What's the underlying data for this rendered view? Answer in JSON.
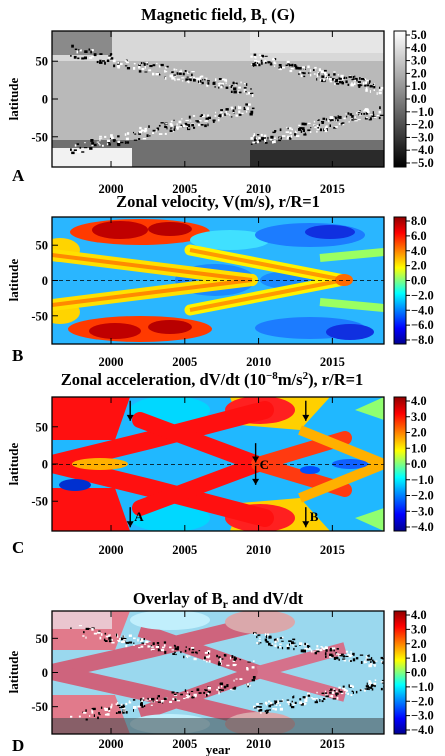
{
  "chart_data": [
    {
      "type": "heatmap",
      "panel_label": "A",
      "title": "Magnetic field, B_r (G)",
      "ylabel": "latitude",
      "xlabel": "",
      "xlim": [
        1996,
        2018.5
      ],
      "ylim": [
        -90,
        90
      ],
      "x_ticks": [
        2000,
        2005,
        2010,
        2015
      ],
      "y_ticks": [
        50,
        0,
        -50
      ],
      "colorbar": {
        "colormap": "grayscale",
        "range": [
          -5.0,
          5.0
        ],
        "ticks": [
          "5.0",
          "4.0",
          "3.0",
          "2.0",
          "1.0",
          "0.0",
          "−1.0",
          "−2.0",
          "−3.0",
          "−4.0",
          "−5.0"
        ]
      },
      "features": "butterfly diagram: low-latitude mixed-polarity sunspot bands migrating equatorward in cycles 23 and 24; polar fields reversing around 2000-2001 and 2013-2015"
    },
    {
      "type": "heatmap",
      "panel_label": "B",
      "title": "Zonal velocity, V(m/s), r/R=1",
      "ylabel": "latitude",
      "xlabel": "",
      "xlim": [
        1996,
        2018.5
      ],
      "ylim": [
        -90,
        90
      ],
      "x_ticks": [
        2000,
        2005,
        2010,
        2015
      ],
      "y_ticks": [
        50,
        0,
        -50
      ],
      "colorbar": {
        "colormap": "jet",
        "range": [
          -8.0,
          8.0
        ],
        "ticks": [
          "8.0",
          "6.0",
          "4.0",
          "2.0",
          "0.0",
          "−2.0",
          "−4.0",
          "−6.0",
          "−8.0"
        ]
      },
      "features": "torsional oscillation: fast (red) high-latitude branches around 2000-2005, equatorward-migrating branches from +-40 deg converging at the equator near 2015"
    },
    {
      "type": "heatmap",
      "panel_label": "C",
      "title": "Zonal acceleration, dV/dt (10^-8 m/s^2), r/R=1",
      "ylabel": "latitude",
      "xlabel": "",
      "xlim": [
        1996,
        2018.5
      ],
      "ylim": [
        -90,
        90
      ],
      "x_ticks": [
        2000,
        2005,
        2010,
        2015
      ],
      "y_ticks": [
        50,
        0,
        -50
      ],
      "colorbar": {
        "colormap": "jet",
        "range": [
          -4.0,
          4.0
        ],
        "ticks": [
          "4.0",
          "3.0",
          "2.0",
          "1.0",
          "0.0",
          "−1.0",
          "−2.0",
          "−3.0",
          "−4.0"
        ]
      },
      "annotations": [
        {
          "label": "A",
          "x": 2001.3,
          "lat": -70
        },
        {
          "label": "C",
          "x": 2009.8,
          "lat": 0
        },
        {
          "label": "B",
          "x": 2013.2,
          "lat": -70
        }
      ],
      "arrows": [
        {
          "x": 2001.3,
          "lat_from": 85,
          "lat_to": 58
        },
        {
          "x": 2001.3,
          "lat_from": -58,
          "lat_to": -85
        },
        {
          "x": 2009.8,
          "lat_from": 28,
          "lat_to": 2
        },
        {
          "x": 2009.8,
          "lat_from": -2,
          "lat_to": -28
        },
        {
          "x": 2013.2,
          "lat_from": 85,
          "lat_to": 58
        },
        {
          "x": 2013.2,
          "lat_from": -58,
          "lat_to": -85
        }
      ],
      "features": "alternating acceleration (red) / deceleration (blue) diagonal bands migrating poleward from mid-latitudes and equatorward toward the equator"
    },
    {
      "type": "heatmap",
      "panel_label": "D",
      "title": "Overlay of B_r and dV/dt",
      "ylabel": "latitude",
      "xlabel": "year",
      "xlim": [
        1996,
        2018.5
      ],
      "ylim": [
        -90,
        90
      ],
      "x_ticks": [
        2000,
        2005,
        2010,
        2015
      ],
      "y_ticks": [
        50,
        0,
        -50
      ],
      "colorbar": {
        "colormap": "jet",
        "range": [
          -4.0,
          4.0
        ],
        "ticks": [
          "4.0",
          "3.0",
          "2.0",
          "1.0",
          "0.0",
          "−1.0",
          "−2.0",
          "−3.0",
          "−4.0"
        ]
      },
      "features": "magnetic butterfly diagram overlaid on the zonal acceleration pattern"
    }
  ],
  "colors": {
    "jet": [
      "#00008f",
      "#0000ff",
      "#00a0ff",
      "#00ffff",
      "#80ff80",
      "#ffff00",
      "#ff9000",
      "#ff0000",
      "#8f0000"
    ],
    "gray": [
      "#000000",
      "#ffffff"
    ],
    "zero_line": "#000000"
  }
}
